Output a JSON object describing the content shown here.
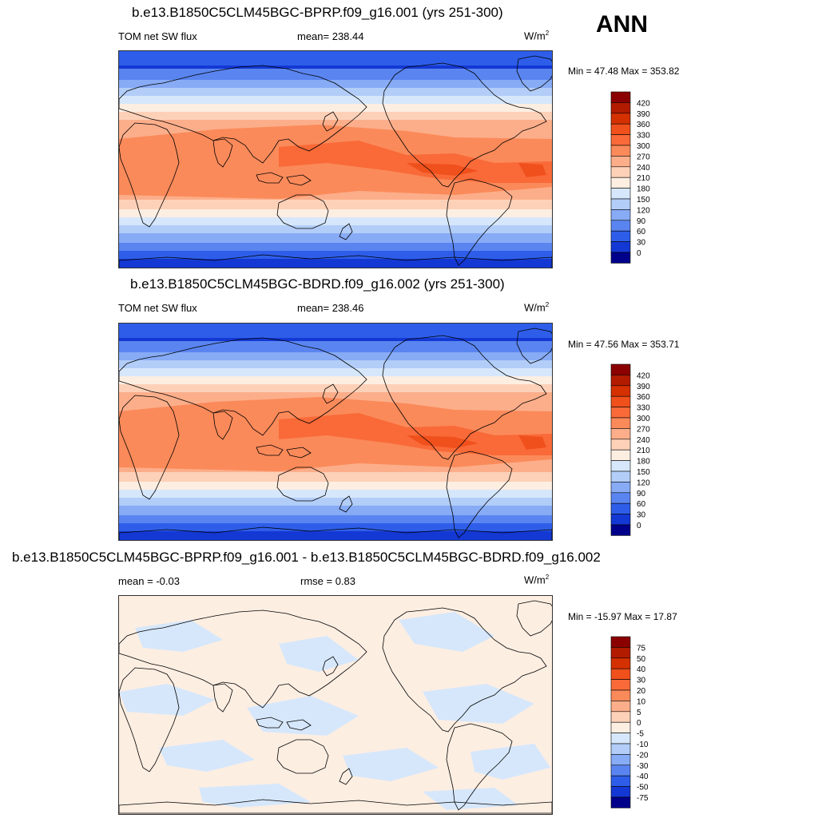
{
  "season": "ANN",
  "units_base": "W/m",
  "units_exp": "2",
  "units_plain": "W/m",
  "panels": [
    {
      "title": "b.e13.B1850C5CLM45BGC-BPRP.f09_g16.001 (yrs 251-300)",
      "left_label": "TOM net SW flux",
      "center_label": "mean= 238.44",
      "minmax": "Min =  47.48 Max = 353.82"
    },
    {
      "title": "b.e13.B1850C5CLM45BGC-BDRD.f09_g16.002 (yrs 251-300)",
      "left_label": "TOM net SW flux",
      "center_label": "mean= 238.46",
      "minmax": "Min =  47.56 Max = 353.71"
    },
    {
      "title": "b.e13.B1850C5CLM45BGC-BPRP.f09_g16.001 - b.e13.B1850C5CLM45BGC-BDRD.f09_g16.002",
      "left_label": "mean =  -0.03",
      "center_label": "rmse =   0.83",
      "minmax": "Min = -15.97 Max =  17.87"
    }
  ],
  "colorbar_main": {
    "labels": [
      "420",
      "390",
      "360",
      "330",
      "300",
      "270",
      "240",
      "210",
      "180",
      "150",
      "120",
      "90",
      "60",
      "30",
      "0"
    ],
    "colors": [
      "#8b0000",
      "#b21b00",
      "#d53000",
      "#f0501c",
      "#f96a38",
      "#fb8a5a",
      "#fcae8a",
      "#fdd1b8",
      "#fdeee2",
      "#d6e7fb",
      "#b2cdf7",
      "#87abf5",
      "#5a85f0",
      "#2e5ee9",
      "#1438d4",
      "#00008b"
    ]
  },
  "colorbar_diff": {
    "labels": [
      "75",
      "50",
      "40",
      "30",
      "20",
      "10",
      "5",
      "0",
      "-5",
      "-10",
      "-20",
      "-30",
      "-40",
      "-50",
      "-75"
    ],
    "colors": [
      "#8b0000",
      "#b21b00",
      "#d53000",
      "#f0501c",
      "#f96a38",
      "#fb8a5a",
      "#fcae8a",
      "#fdd1b8",
      "#fdeee2",
      "#d6e7fb",
      "#b2cdf7",
      "#87abf5",
      "#5a85f0",
      "#2e5ee9",
      "#1438d4",
      "#00008b"
    ]
  }
}
